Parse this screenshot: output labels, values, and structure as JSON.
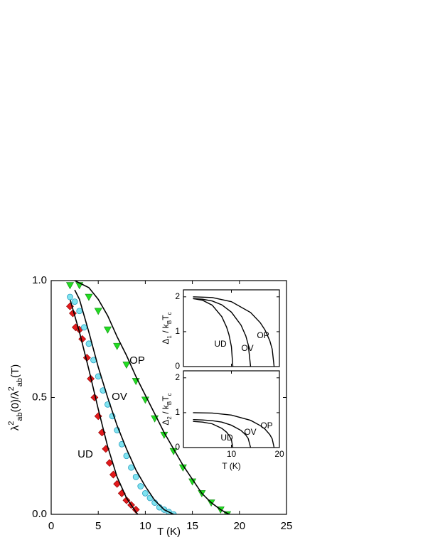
{
  "chart_data": [
    {
      "type": "scatter",
      "x_label": "T (K)",
      "y_label_parts": [
        "λ",
        "2",
        "ab",
        "(0)/λ",
        "2",
        "ab",
        "(T)"
      ],
      "xlim": [
        0,
        25
      ],
      "xticks": [
        0,
        5,
        10,
        15,
        20,
        25
      ],
      "ylim": [
        0,
        1.0
      ],
      "yticks": [
        {
          "value": 0,
          "label": "0.0"
        },
        0.5,
        {
          "value": 1,
          "label": "1.0"
        }
      ],
      "series": [
        {
          "name": "UD",
          "color": "#e31a1c",
          "marker": "diamond",
          "x": [
            2.0,
            2.3,
            2.6,
            3.0,
            3.3,
            3.8,
            4.2,
            4.6,
            5.0,
            5.4,
            5.8,
            6.2,
            6.6,
            7.0,
            7.5,
            8.0,
            8.5,
            9.0
          ],
          "values": [
            0.89,
            0.86,
            0.8,
            0.79,
            0.75,
            0.67,
            0.58,
            0.5,
            0.42,
            0.35,
            0.28,
            0.22,
            0.17,
            0.13,
            0.09,
            0.06,
            0.04,
            0.02
          ],
          "fit_x": [
            2.0,
            3,
            4,
            5,
            6,
            7,
            8,
            9,
            9.2
          ],
          "fit": [
            0.92,
            0.78,
            0.62,
            0.45,
            0.29,
            0.16,
            0.07,
            0.01,
            0
          ]
        },
        {
          "name": "OV",
          "color": "#7fe3f0",
          "marker": "circle",
          "x": [
            2,
            2.5,
            3,
            3.5,
            4,
            4.5,
            5,
            5.5,
            6,
            6.5,
            7,
            7.5,
            8,
            8.5,
            9,
            9.5,
            10,
            10.5,
            11,
            11.5,
            12,
            12.5,
            13
          ],
          "values": [
            0.93,
            0.91,
            0.87,
            0.8,
            0.73,
            0.66,
            0.59,
            0.53,
            0.47,
            0.42,
            0.36,
            0.3,
            0.25,
            0.2,
            0.16,
            0.12,
            0.09,
            0.07,
            0.05,
            0.03,
            0.02,
            0.01,
            0.0
          ],
          "fit_x": [
            2.5,
            3,
            4,
            5,
            6,
            7,
            8,
            9,
            10,
            11,
            12,
            13
          ],
          "fit": [
            0.96,
            0.92,
            0.78,
            0.63,
            0.5,
            0.38,
            0.28,
            0.19,
            0.12,
            0.06,
            0.02,
            0.0
          ]
        },
        {
          "name": "OP",
          "color": "#22dd22",
          "marker": "triangle",
          "x": [
            2,
            3,
            4,
            5,
            6,
            7,
            8,
            9,
            10,
            11,
            12,
            13,
            14,
            15,
            16,
            17,
            18,
            18.7
          ],
          "values": [
            0.98,
            0.98,
            0.93,
            0.87,
            0.79,
            0.72,
            0.64,
            0.57,
            0.49,
            0.41,
            0.34,
            0.27,
            0.2,
            0.14,
            0.09,
            0.05,
            0.02,
            0.0
          ],
          "fit_x": [
            2.5,
            4,
            5,
            6,
            7,
            8,
            9,
            10,
            11,
            12,
            13,
            14,
            15,
            16,
            17,
            18,
            18.9
          ],
          "fit": [
            1.0,
            0.97,
            0.92,
            0.85,
            0.76,
            0.68,
            0.59,
            0.51,
            0.43,
            0.35,
            0.28,
            0.21,
            0.15,
            0.09,
            0.05,
            0.02,
            0
          ]
        }
      ]
    },
    {
      "type": "line",
      "y_label_parts": [
        "Δ",
        "1",
        " / k",
        "B",
        "T",
        "c"
      ],
      "xlim": [
        0,
        20
      ],
      "xticks": [
        10,
        20
      ],
      "ylim": [
        0,
        2.2
      ],
      "yticks": [
        0,
        1,
        2
      ],
      "series": [
        {
          "name": "UD",
          "color": "#000000",
          "x": [
            2,
            4,
            6,
            8,
            9,
            9.5,
            10,
            10.3
          ],
          "values": [
            1.95,
            1.9,
            1.76,
            1.43,
            1.13,
            0.91,
            0.57,
            0
          ]
        },
        {
          "name": "OV",
          "color": "#000000",
          "x": [
            2,
            4,
            6,
            8,
            10,
            12,
            13,
            13.5,
            14
          ],
          "values": [
            1.95,
            1.93,
            1.88,
            1.77,
            1.56,
            1.19,
            0.88,
            0.63,
            0
          ]
        },
        {
          "name": "OP",
          "color": "#000000",
          "x": [
            2,
            6,
            10,
            14,
            16,
            17,
            18,
            18.5,
            18.9
          ],
          "values": [
            2.0,
            1.98,
            1.86,
            1.55,
            1.26,
            1.05,
            0.74,
            0.5,
            0
          ]
        }
      ]
    },
    {
      "type": "line",
      "x_label": "T (K)",
      "y_label_parts": [
        "Δ",
        "2",
        " / k",
        "B",
        "T",
        "c"
      ],
      "xlim": [
        0,
        20
      ],
      "xticks": [
        10,
        20
      ],
      "ylim": [
        0,
        2.2
      ],
      "yticks": [
        0,
        1,
        2
      ],
      "series": [
        {
          "name": "UD",
          "color": "#000000",
          "x": [
            2,
            4,
            6,
            8,
            9,
            9.5,
            10,
            10.3
          ],
          "values": [
            0.75,
            0.73,
            0.68,
            0.55,
            0.44,
            0.35,
            0.22,
            0
          ]
        },
        {
          "name": "OV",
          "color": "#000000",
          "x": [
            2,
            4,
            6,
            8,
            10,
            12,
            13,
            13.5,
            14
          ],
          "values": [
            0.8,
            0.79,
            0.77,
            0.73,
            0.64,
            0.49,
            0.36,
            0.26,
            0
          ]
        },
        {
          "name": "OP",
          "color": "#000000",
          "x": [
            2,
            6,
            10,
            14,
            16,
            17,
            18,
            18.5,
            18.9
          ],
          "values": [
            1.0,
            0.99,
            0.93,
            0.78,
            0.63,
            0.53,
            0.37,
            0.25,
            0
          ]
        }
      ]
    }
  ]
}
